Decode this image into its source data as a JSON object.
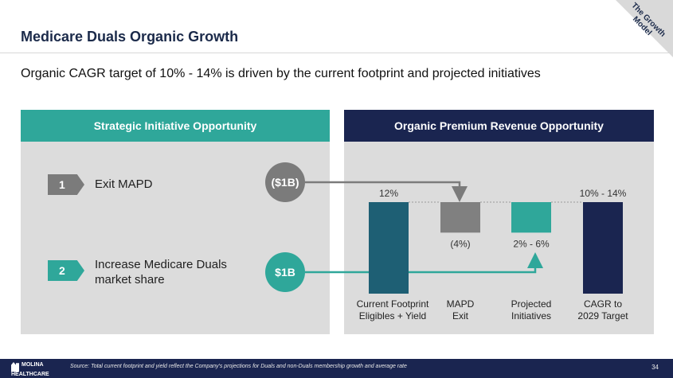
{
  "header": {
    "title": "Medicare Duals Organic Growth",
    "badge": "The Growth Model"
  },
  "subtitle": "Organic CAGR target of 10% - 14% is driven by the current footprint and projected initiatives",
  "left_panel": {
    "title": "Strategic Initiative Opportunity",
    "initiatives": [
      {
        "number": "1",
        "label": "Exit MAPD",
        "value": "($1B)"
      },
      {
        "number": "2",
        "label_line1": "Increase Medicare Duals",
        "label_line2": "market share",
        "value": "$1B"
      }
    ]
  },
  "right_panel": {
    "title": "Organic Premium Revenue Opportunity"
  },
  "chart_data": {
    "type": "waterfall",
    "categories": [
      "Current Footprint Eligibles + Yield",
      "MAPD Exit",
      "Projected Initiatives",
      "CAGR to 2029 Target"
    ],
    "category_lines": [
      [
        "Current Footprint",
        "Eligibles + Yield"
      ],
      [
        "MAPD",
        "Exit"
      ],
      [
        "Projected",
        "Initiatives"
      ],
      [
        "CAGR to",
        "2029 Target"
      ]
    ],
    "values": [
      12,
      -4,
      4,
      12
    ],
    "data_labels": [
      "12%",
      "(4%)",
      "2% - 6%",
      "10% - 14%"
    ],
    "bar_kinds": [
      "total",
      "decrease",
      "increase",
      "total"
    ],
    "colors": [
      "#1e5f74",
      "#808080",
      "#2fa79a",
      "#1a2550"
    ]
  },
  "footer": {
    "logo": "MOLINA HEALTHCARE",
    "source": "Source: Total current footprint and yield reflect the Company's projections for Duals and non-Duals membership growth and average rate",
    "page": "34"
  }
}
